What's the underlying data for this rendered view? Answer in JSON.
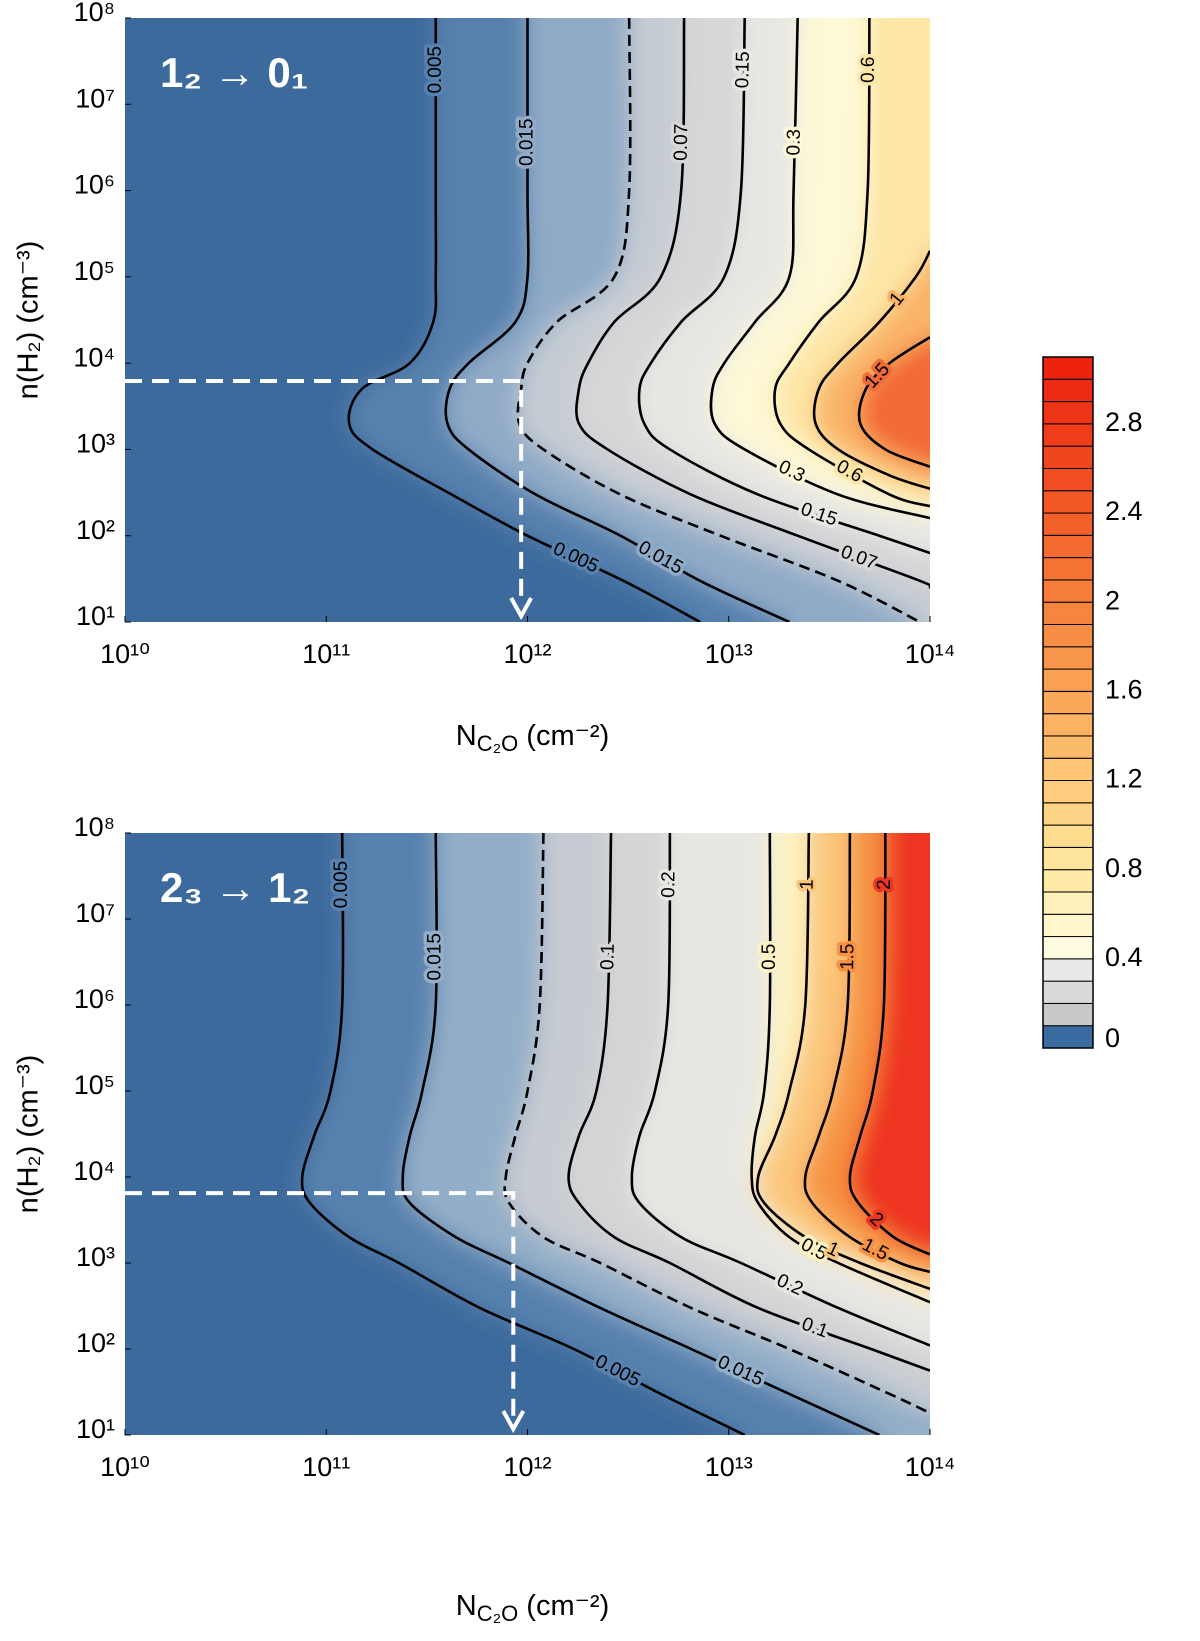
{
  "chart_data": [
    {
      "type": "contour",
      "panel_label": "1₂ → 0₁",
      "xlabel": [
        "N",
        "C₂O",
        " (cm⁻²)"
      ],
      "ylabel": "n(H₂) (cm⁻³)",
      "xscale": "log",
      "yscale": "log",
      "xlim": [
        10000000000.0,
        100000000000000.0
      ],
      "ylim": [
        10,
        100000000.0
      ],
      "xticks": [
        {
          "value": 10000000000.0,
          "label": "10¹⁰"
        },
        {
          "value": 100000000000.0,
          "label": "10¹¹"
        },
        {
          "value": 1000000000000.0,
          "label": "10¹²"
        },
        {
          "value": 10000000000000.0,
          "label": "10¹³"
        },
        {
          "value": 100000000000000.0,
          "label": "10¹⁴"
        }
      ],
      "yticks": [
        {
          "value": 10,
          "label": "10¹"
        },
        {
          "value": 100,
          "label": "10²"
        },
        {
          "value": 1000,
          "label": "10³"
        },
        {
          "value": 10000,
          "label": "10⁴"
        },
        {
          "value": 100000,
          "label": "10⁵"
        },
        {
          "value": 1000000,
          "label": "10⁶"
        },
        {
          "value": 10000000,
          "label": "10⁷"
        },
        {
          "value": 100000000,
          "label": "10⁸"
        }
      ],
      "background": "#3c6a9c",
      "contours": [
        {
          "level": 0.005,
          "dashed": false,
          "color": "#5781ae",
          "x": [
            350000000000.0,
            350000000000.0,
            350000000000.0,
            340000000000.0,
            260000000000.0,
            150000000000.0,
            130000000000.0,
            170000000000.0,
            420000000000.0,
            1000000000000.0,
            3000000000000.0,
            7200000000000.0
          ],
          "y": [
            100000000.0,
            1000000.0,
            100000.0,
            30000.0,
            10000.0,
            5000.0,
            2000.0,
            1000.0,
            300,
            100,
            30,
            10
          ]
        },
        {
          "level": 0.015,
          "dashed": false,
          "color": "#90abc7",
          "x": [
            1000000000000.0,
            1000000000000.0,
            1000000000000.0,
            870000000000.0,
            510000000000.0,
            410000000000.0,
            400000000000.0,
            510000000000.0,
            1100000000000.0,
            2900000000000.0,
            7200000000000.0,
            20000000000000.0
          ],
          "y": [
            100000000.0,
            1000000.0,
            100000.0,
            30000.0,
            10000.0,
            5000.0,
            2000.0,
            1000.0,
            300,
            100,
            30,
            10
          ]
        },
        {
          "dashed": true,
          "color": "#c6ccd3",
          "x": [
            3200000000000.0,
            3200000000000.0,
            2700000000000.0,
            1400000000000.0,
            1000000000000.0,
            930000000000.0,
            910000000000.0,
            1200000000000.0,
            2900000000000.0,
            9100000000000.0,
            35000000000000.0,
            89000000000000.0
          ],
          "y": [
            100000000.0,
            1000000.0,
            100000.0,
            30000.0,
            10000.0,
            5000.0,
            2000.0,
            1000.0,
            300,
            100,
            30,
            10
          ]
        },
        {
          "level": 0.07,
          "dashed": false,
          "color": "#d7d7d7",
          "x": [
            6000000000000.0,
            5800000000000.0,
            4600000000000.0,
            2700000000000.0,
            2000000000000.0,
            1800000000000.0,
            1800000000000.0,
            2500000000000.0,
            6500000000000.0,
            22000000000000.0,
            89000000000000.0,
            100000000000000.0
          ],
          "y": [
            100000000.0,
            1000000.0,
            100000.0,
            30000.0,
            10000.0,
            5000.0,
            2000.0,
            1000.0,
            300,
            100,
            30,
            25
          ]
        },
        {
          "level": 0.15,
          "dashed": false,
          "color": "#e7e7e4",
          "x": [
            12000000000000.0,
            11500000000000.0,
            9500000000000.0,
            5800000000000.0,
            4100000000000.0,
            3600000000000.0,
            3800000000000.0,
            5100000000000.0,
            14000000000000.0,
            56000000000000.0,
            100000000000000.0
          ],
          "y": [
            100000000.0,
            1000000.0,
            100000.0,
            30000.0,
            10000.0,
            5000.0,
            2000.0,
            1000.0,
            300,
            100,
            63
          ]
        },
        {
          "level": 0.3,
          "dashed": false,
          "color": "#fdf8d6",
          "x": [
            22000000000000.0,
            21000000000000.0,
            20000000000000.0,
            13500000000000.0,
            9500000000000.0,
            8300000000000.0,
            8500000000000.0,
            12000000000000.0,
            35000000000000.0,
            100000000000000.0
          ],
          "y": [
            100000000.0,
            1000000.0,
            100000.0,
            30000.0,
            10000.0,
            5000.0,
            2000.0,
            1000.0,
            300,
            160
          ]
        },
        {
          "level": 0.6,
          "dashed": false,
          "color": "#fde6a6",
          "x": [
            50000000000000.0,
            49000000000000.0,
            43000000000000.0,
            28000000000000.0,
            20000000000000.0,
            17000000000000.0,
            18000000000000.0,
            25000000000000.0,
            63000000000000.0,
            100000000000000.0
          ],
          "y": [
            100000000.0,
            1000000.0,
            100000.0,
            30000.0,
            10000.0,
            5000.0,
            2000.0,
            1000.0,
            300,
            220
          ]
        },
        {
          "level": 1,
          "dashed": false,
          "color": "#f9b466",
          "x": [
            100000000000000.0,
            85000000000000.0,
            56000000000000.0,
            35000000000000.0,
            28000000000000.0,
            27000000000000.0,
            35000000000000.0,
            63000000000000.0,
            100000000000000.0
          ],
          "y": [
            200000.0,
            100000.0,
            30000.0,
            10000.0,
            5000.0,
            2000.0,
            1000.0,
            500,
            350
          ]
        },
        {
          "level": 1.5,
          "dashed": false,
          "color": "#f26a36",
          "x": [
            100000000000000.0,
            63000000000000.0,
            48000000000000.0,
            45000000000000.0,
            60000000000000.0,
            100000000000000.0
          ],
          "y": [
            20000.0,
            10000.0,
            5000.0,
            2000.0,
            1000.0,
            630
          ]
        }
      ],
      "guide": {
        "x": 930000000000.0,
        "y": 6200.0,
        "color": "#ffffff"
      }
    },
    {
      "type": "contour",
      "panel_label": "2₃ → 1₂",
      "xlabel": [
        "N",
        "C₂O",
        " (cm⁻²)"
      ],
      "ylabel": "n(H₂) (cm⁻³)",
      "xscale": "log",
      "yscale": "log",
      "xlim": [
        10000000000.0,
        100000000000000.0
      ],
      "ylim": [
        10,
        100000000.0
      ],
      "xticks": [
        {
          "value": 10000000000.0,
          "label": "10¹⁰"
        },
        {
          "value": 100000000000.0,
          "label": "10¹¹"
        },
        {
          "value": 1000000000000.0,
          "label": "10¹²"
        },
        {
          "value": 10000000000000.0,
          "label": "10¹³"
        },
        {
          "value": 100000000000000.0,
          "label": "10¹⁴"
        }
      ],
      "yticks": [
        {
          "value": 10,
          "label": "10¹"
        },
        {
          "value": 100,
          "label": "10²"
        },
        {
          "value": 1000,
          "label": "10³"
        },
        {
          "value": 10000,
          "label": "10⁴"
        },
        {
          "value": 100000,
          "label": "10⁵"
        },
        {
          "value": 1000000,
          "label": "10⁶"
        },
        {
          "value": 10000000,
          "label": "10⁷"
        },
        {
          "value": 100000000,
          "label": "10⁸"
        }
      ],
      "background": "#3c6a9c",
      "contours": [
        {
          "level": 0.005,
          "dashed": false,
          "color": "#5781ae",
          "x": [
            120000000000.0,
            120000000000.0,
            105000000000.0,
            87000000000.0,
            76000000000.0,
            83000000000.0,
            130000000000.0,
            230000000000.0,
            580000000000.0,
            1700000000000.0,
            4600000000000.0,
            12000000000000.0
          ],
          "y": [
            100000000.0,
            1000000.0,
            100000.0,
            30000.0,
            10000.0,
            5000.0,
            2000.0,
            1000.0,
            300,
            100,
            30,
            10
          ]
        },
        {
          "level": 0.015,
          "dashed": false,
          "color": "#93aec8",
          "x": [
            350000000000.0,
            350000000000.0,
            300000000000.0,
            260000000000.0,
            240000000000.0,
            260000000000.0,
            440000000000.0,
            810000000000.0,
            2300000000000.0,
            6500000000000.0,
            20000000000000.0,
            56000000000000.0
          ],
          "y": [
            100000000.0,
            1000000.0,
            100000.0,
            30000.0,
            10000.0,
            5000.0,
            2000.0,
            1000.0,
            300,
            100,
            30,
            10
          ]
        },
        {
          "dashed": true,
          "color": "#c8ccd2",
          "x": [
            1200000000000.0,
            1150000000000.0,
            1000000000000.0,
            870000000000.0,
            780000000000.0,
            810000000000.0,
            1200000000000.0,
            2300000000000.0,
            6500000000000.0,
            20000000000000.0,
            63000000000000.0,
            100000000000000.0
          ],
          "y": [
            100000000.0,
            1000000.0,
            100000.0,
            30000.0,
            10000.0,
            5000.0,
            2000.0,
            1000.0,
            300,
            100,
            30,
            18
          ]
        },
        {
          "level": 0.1,
          "dashed": false,
          "color": "#d6d6d6",
          "x": [
            2600000000000.0,
            2500000000000.0,
            2200000000000.0,
            1800000000000.0,
            1600000000000.0,
            1800000000000.0,
            2700000000000.0,
            5100000000000.0,
            14000000000000.0,
            51000000000000.0,
            100000000000000.0
          ],
          "y": [
            100000000.0,
            1000000.0,
            100000.0,
            30000.0,
            10000.0,
            5000.0,
            2000.0,
            1000.0,
            300,
            100,
            56
          ]
        },
        {
          "level": 0.2,
          "dashed": false,
          "color": "#e7e7e4",
          "x": [
            5100000000000.0,
            5000000000000.0,
            4300000000000.0,
            3600000000000.0,
            3300000000000.0,
            3600000000000.0,
            5800000000000.0,
            11500000000000.0,
            35000000000000.0,
            100000000000000.0
          ],
          "y": [
            100000000.0,
            1000000.0,
            100000.0,
            30000.0,
            10000.0,
            5000.0,
            2000.0,
            1000.0,
            300,
            110
          ]
        },
        {
          "level": 0.5,
          "dashed": false,
          "color": "#fdf3c2",
          "x": [
            16000000000000.0,
            16000000000000.0,
            15000000000000.0,
            13500000000000.0,
            13000000000000.0,
            14000000000000.0,
            20000000000000.0,
            35000000000000.0,
            100000000000000.0
          ],
          "y": [
            100000000.0,
            1000000.0,
            100000.0,
            30000.0,
            10000.0,
            5000.0,
            2000.0,
            1000.0,
            350
          ]
        },
        {
          "level": 1,
          "dashed": false,
          "color": "#fbc67c",
          "x": [
            25000000000000.0,
            24000000000000.0,
            20000000000000.0,
            17000000000000.0,
            14000000000000.0,
            15000000000000.0,
            24000000000000.0,
            45000000000000.0,
            100000000000000.0
          ],
          "y": [
            100000000.0,
            1000000.0,
            100000.0,
            30000.0,
            10000.0,
            5000.0,
            2000.0,
            1000.0,
            500
          ]
        },
        {
          "level": 1.5,
          "dashed": false,
          "color": "#f69242",
          "x": [
            40000000000000.0,
            39000000000000.0,
            33000000000000.0,
            28000000000000.0,
            24000000000000.0,
            26000000000000.0,
            40000000000000.0,
            71000000000000.0,
            100000000000000.0
          ],
          "y": [
            100000000.0,
            1000000.0,
            100000.0,
            30000.0,
            10000.0,
            5000.0,
            2000.0,
            1000.0,
            790
          ]
        },
        {
          "level": 2,
          "dashed": false,
          "color": "#ee3620",
          "x": [
            60000000000000.0,
            59000000000000.0,
            52000000000000.0,
            45000000000000.0,
            40000000000000.0,
            44000000000000.0,
            66000000000000.0,
            100000000000000.0
          ],
          "y": [
            100000000.0,
            1000000.0,
            100000.0,
            30000.0,
            10000.0,
            5000.0,
            2000.0,
            1260
          ]
        }
      ],
      "guide": {
        "x": 850000000000.0,
        "y": 6500.0,
        "color": "#ffffff"
      }
    },
    {
      "type": "colorbar",
      "ylim": [
        0,
        3.1
      ],
      "yticks": [
        0,
        0.4,
        0.8,
        1.2,
        1.6,
        2,
        2.4,
        2.8
      ],
      "colors": [
        "#3a6ba0",
        "#c8c8c8",
        "#d9d9d9",
        "#e9e9e9",
        "#fffbe0",
        "#fff6cc",
        "#fff0bb",
        "#ffeaa8",
        "#fee39c",
        "#fedc90",
        "#fdd486",
        "#fdcc7c",
        "#fcc473",
        "#fbbb6a",
        "#fbb262",
        "#faa95a",
        "#f9a053",
        "#f8974c",
        "#f88e46",
        "#f78540",
        "#f67c3a",
        "#f57335",
        "#f46a30",
        "#f3612b",
        "#f25826",
        "#f14f22",
        "#f0461e",
        "#ef3d1a",
        "#ee3416",
        "#ed2b12",
        "#ec220e"
      ]
    }
  ]
}
